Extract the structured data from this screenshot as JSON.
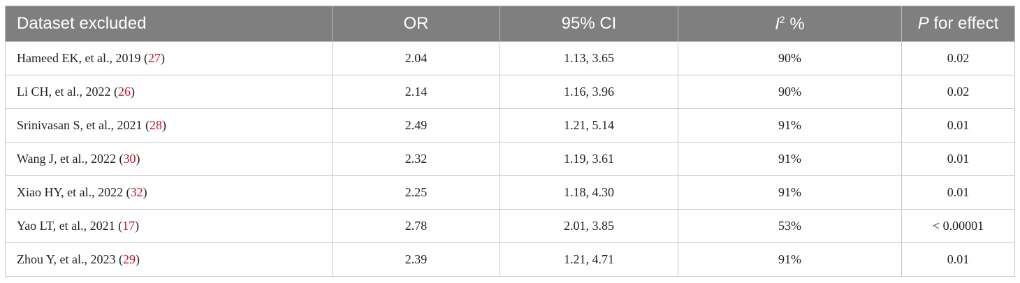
{
  "table": {
    "header": {
      "study": "Dataset excluded",
      "or": "OR",
      "ci": "95% CI",
      "i2": {
        "base": "I",
        "sup": "2",
        "rest": " %"
      },
      "p": {
        "italic": "P",
        "rest": " for effect"
      }
    },
    "rows": [
      {
        "prefix": "Hameed EK, et al., 2019 (",
        "ref": "27",
        "suffix": ")",
        "or": "2.04",
        "ci": "1.13, 3.65",
        "i2": "90%",
        "p": "0.02"
      },
      {
        "prefix": "Li CH, et al., 2022 (",
        "ref": "26",
        "suffix": ")",
        "or": "2.14",
        "ci": "1.16, 3.96",
        "i2": "90%",
        "p": "0.02"
      },
      {
        "prefix": "Srinivasan S, et al., 2021 (",
        "ref": "28",
        "suffix": ")",
        "or": "2.49",
        "ci": "1.21, 5.14",
        "i2": "91%",
        "p": "0.01"
      },
      {
        "prefix": "Wang J, et al., 2022 (",
        "ref": "30",
        "suffix": ")",
        "or": "2.32",
        "ci": "1.19, 3.61",
        "i2": "91%",
        "p": "0.01"
      },
      {
        "prefix": "Xiao HY, et al., 2022 (",
        "ref": "32",
        "suffix": ")",
        "or": "2.25",
        "ci": "1.18, 4.30",
        "i2": "91%",
        "p": "0.01"
      },
      {
        "prefix": "Yao LT, et al., 2021 (",
        "ref": "17",
        "suffix": ")",
        "or": "2.78",
        "ci": "2.01, 3.85",
        "i2": "53%",
        "p": "< 0.00001"
      },
      {
        "prefix": "Zhou Y, et al., 2023 (",
        "ref": "29",
        "suffix": ")",
        "or": "2.39",
        "ci": "1.21, 4.71",
        "i2": "91%",
        "p": "0.01"
      }
    ]
  }
}
